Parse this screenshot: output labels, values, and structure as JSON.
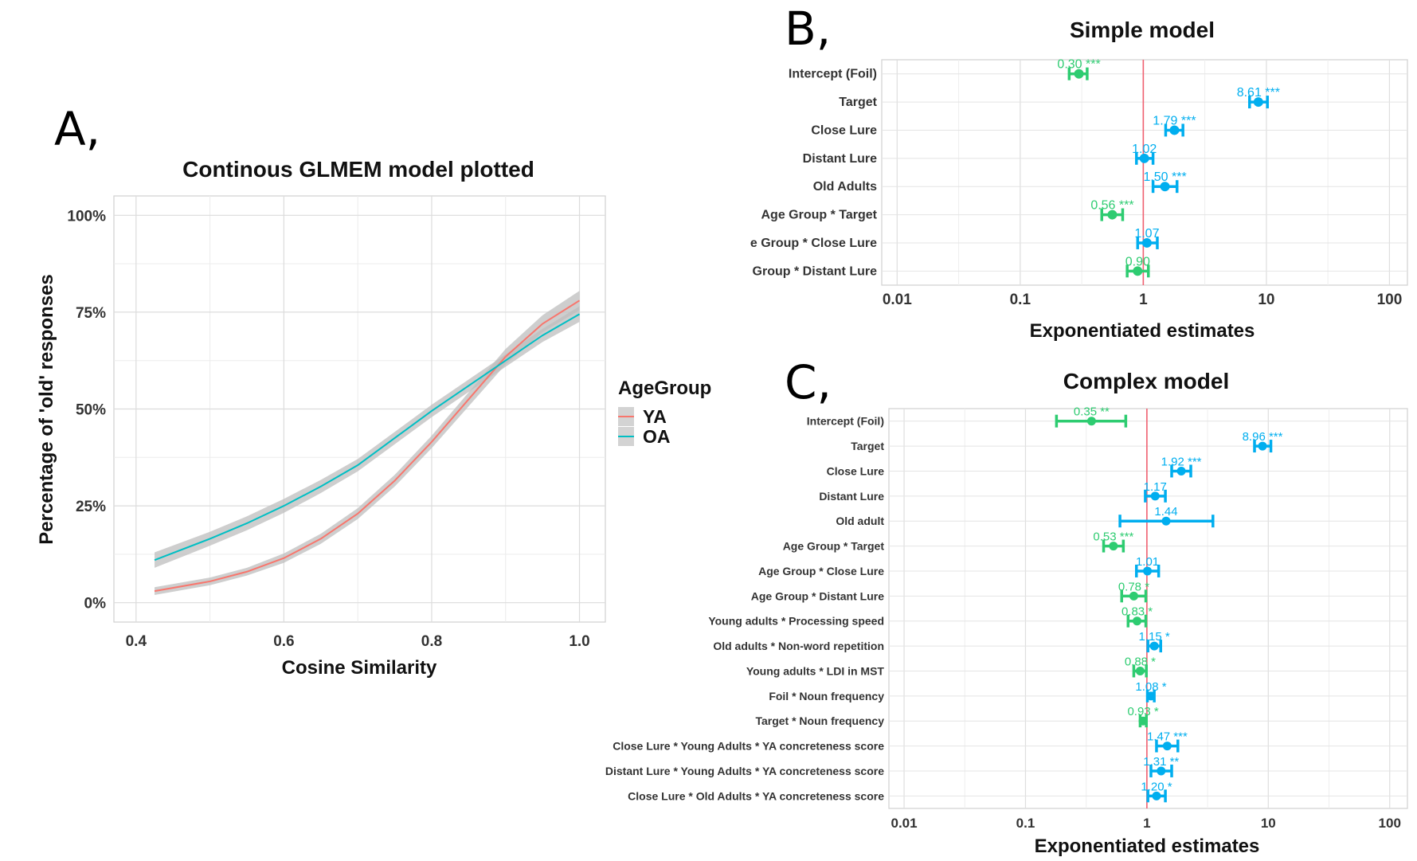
{
  "panels": {
    "a": "A,",
    "b": "B,",
    "c": "C,"
  },
  "colors": {
    "ya": "#F8766D",
    "oa": "#00BFC4",
    "ribbon": "#BDBDBD",
    "positive": "#00AEEF",
    "negative": "#2ECC71",
    "refline": "#F06070"
  },
  "chart_data": [
    {
      "type": "line",
      "title": "Continous GLMEM model plotted",
      "xlabel": "Cosine Similarity",
      "ylabel": "Percentage of 'old' responses",
      "xlim": [
        0.37,
        1.035
      ],
      "ylim": [
        -0.05,
        1.05
      ],
      "x_ticks": [
        0.4,
        0.6,
        0.8,
        1.0
      ],
      "x_tick_labels": [
        "0.4",
        "0.6",
        "0.8",
        "1.0"
      ],
      "y_ticks": [
        0,
        0.25,
        0.5,
        0.75,
        1.0
      ],
      "y_tick_labels": [
        "0%",
        "25%",
        "50%",
        "75%",
        "100%"
      ],
      "grid": true,
      "legend": {
        "title": "AgeGroup",
        "position": "right"
      },
      "series": [
        {
          "name": "YA",
          "color": "#F8766D",
          "x": [
            0.425,
            0.5,
            0.55,
            0.6,
            0.65,
            0.7,
            0.75,
            0.8,
            0.85,
            0.9,
            0.95,
            1.0
          ],
          "y": [
            0.03,
            0.055,
            0.08,
            0.115,
            0.165,
            0.23,
            0.315,
            0.415,
            0.525,
            0.635,
            0.72,
            0.78
          ],
          "band": [
            0.01,
            0.01,
            0.01,
            0.012,
            0.013,
            0.014,
            0.015,
            0.016,
            0.018,
            0.02,
            0.022,
            0.025
          ]
        },
        {
          "name": "OA",
          "color": "#00BFC4",
          "x": [
            0.425,
            0.5,
            0.55,
            0.6,
            0.65,
            0.7,
            0.75,
            0.8,
            0.85,
            0.9,
            0.95,
            1.0
          ],
          "y": [
            0.11,
            0.165,
            0.205,
            0.25,
            0.3,
            0.355,
            0.425,
            0.495,
            0.56,
            0.625,
            0.69,
            0.745
          ],
          "band": [
            0.02,
            0.018,
            0.018,
            0.018,
            0.017,
            0.016,
            0.016,
            0.016,
            0.016,
            0.016,
            0.017,
            0.02
          ]
        }
      ]
    },
    {
      "type": "forest",
      "title": "Simple model",
      "xlabel": "Exponentiated estimates",
      "x_scale": "log",
      "xlim": [
        0.0075,
        140
      ],
      "x_ticks": [
        0.01,
        0.1,
        1,
        10,
        100
      ],
      "x_tick_labels": [
        "0.01",
        "0.1",
        "1",
        "10",
        "100"
      ],
      "reference_line": 1,
      "grid": true,
      "rows": [
        {
          "term": "Intercept (Foil)",
          "est": 0.3,
          "lo": 0.25,
          "hi": 0.35,
          "label": "0.30 ***",
          "direction": "negative"
        },
        {
          "term": "Target",
          "est": 8.61,
          "lo": 7.3,
          "hi": 10.2,
          "label": "8.61 ***",
          "direction": "positive"
        },
        {
          "term": "Close Lure",
          "est": 1.79,
          "lo": 1.52,
          "hi": 2.1,
          "label": "1.79 ***",
          "direction": "positive"
        },
        {
          "term": "Distant Lure",
          "est": 1.02,
          "lo": 0.88,
          "hi": 1.2,
          "label": "1.02",
          "direction": "positive"
        },
        {
          "term": "Old Adults",
          "est": 1.5,
          "lo": 1.2,
          "hi": 1.88,
          "label": "1.50 ***",
          "direction": "positive"
        },
        {
          "term": "Age Group * Target",
          "est": 0.56,
          "lo": 0.46,
          "hi": 0.68,
          "label": "0.56 ***",
          "direction": "negative"
        },
        {
          "term": "e Group * Close Lure",
          "est": 1.07,
          "lo": 0.9,
          "hi": 1.3,
          "label": "1.07",
          "direction": "positive"
        },
        {
          "term": "Group * Distant Lure",
          "est": 0.9,
          "lo": 0.74,
          "hi": 1.1,
          "label": "0.90",
          "direction": "negative"
        }
      ]
    },
    {
      "type": "forest",
      "title": "Complex model",
      "xlabel": "Exponentiated estimates",
      "x_scale": "log",
      "xlim": [
        0.0075,
        140
      ],
      "x_ticks": [
        0.01,
        0.1,
        1,
        10,
        100
      ],
      "x_tick_labels": [
        "0.01",
        "0.1",
        "1",
        "10",
        "100"
      ],
      "reference_line": 1,
      "grid": true,
      "rows": [
        {
          "term": "Intercept (Foil)",
          "est": 0.35,
          "lo": 0.18,
          "hi": 0.67,
          "label": "0.35 **",
          "direction": "negative"
        },
        {
          "term": "Target",
          "est": 8.96,
          "lo": 7.7,
          "hi": 10.5,
          "label": "8.96 ***",
          "direction": "positive"
        },
        {
          "term": "Close Lure",
          "est": 1.92,
          "lo": 1.6,
          "hi": 2.3,
          "label": "1.92 ***",
          "direction": "positive"
        },
        {
          "term": "Distant Lure",
          "est": 1.17,
          "lo": 0.97,
          "hi": 1.42,
          "label": "1.17",
          "direction": "positive"
        },
        {
          "term": "Old adult",
          "est": 1.44,
          "lo": 0.6,
          "hi": 3.5,
          "label": "1.44",
          "direction": "positive"
        },
        {
          "term": "Age Group * Target",
          "est": 0.53,
          "lo": 0.44,
          "hi": 0.64,
          "label": "0.53 ***",
          "direction": "negative"
        },
        {
          "term": "Age Group * Close Lure",
          "est": 1.01,
          "lo": 0.82,
          "hi": 1.25,
          "label": "1.01",
          "direction": "positive"
        },
        {
          "term": "Age Group * Distant Lure",
          "est": 0.78,
          "lo": 0.62,
          "hi": 0.98,
          "label": "0.78 *",
          "direction": "negative"
        },
        {
          "term": "Young adults * Processing speed",
          "est": 0.83,
          "lo": 0.7,
          "hi": 0.98,
          "label": "0.83 *",
          "direction": "negative"
        },
        {
          "term": "Old adults * Non-word repetition",
          "est": 1.15,
          "lo": 1.02,
          "hi": 1.3,
          "label": "1.15 *",
          "direction": "positive"
        },
        {
          "term": "Young adults * LDI in MST",
          "est": 0.88,
          "lo": 0.78,
          "hi": 0.99,
          "label": "0.88 *",
          "direction": "negative"
        },
        {
          "term": "Foil * Noun frequency",
          "est": 1.08,
          "lo": 1.01,
          "hi": 1.15,
          "label": "1.08 *",
          "direction": "positive"
        },
        {
          "term": "Target * Noun frequency",
          "est": 0.93,
          "lo": 0.88,
          "hi": 0.99,
          "label": "0.93 *",
          "direction": "negative"
        },
        {
          "term": "Close Lure * Young Adults * YA concreteness score",
          "est": 1.47,
          "lo": 1.2,
          "hi": 1.8,
          "label": "1.47 ***",
          "direction": "positive"
        },
        {
          "term": "Distant Lure * Young Adults * YA concreteness score",
          "est": 1.31,
          "lo": 1.08,
          "hi": 1.6,
          "label": "1.31 **",
          "direction": "positive"
        },
        {
          "term": "Close Lure * Old Adults * YA concreteness score",
          "est": 1.2,
          "lo": 1.02,
          "hi": 1.42,
          "label": "1.20 *",
          "direction": "positive"
        }
      ]
    }
  ]
}
